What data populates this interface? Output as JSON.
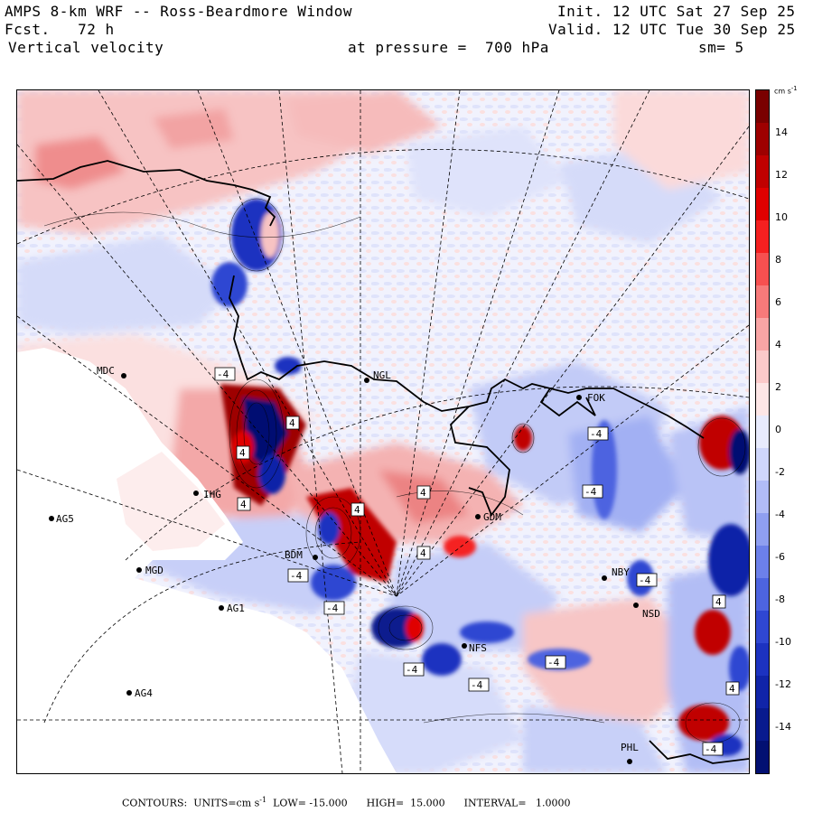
{
  "header": {
    "title": "AMPS 8-km WRF -- Ross-Beardmore Window",
    "forecast": "Fcst.   72 h",
    "field": "Vertical velocity",
    "init": "Init. 12 UTC Sat 27 Sep 25",
    "valid": "Valid. 12 UTC Tue 30 Sep 25",
    "pressure": "at pressure =  700 hPa",
    "smoothing": "sm= 5"
  },
  "colorbar": {
    "units": "cm s",
    "units_sup": "-1",
    "labels": [
      "14",
      "12",
      "10",
      "8",
      "6",
      "4",
      "2",
      "0",
      "-2",
      "-4",
      "-6",
      "-8",
      "-10",
      "-12",
      "-14"
    ],
    "colors": [
      "#7a0000",
      "#9e0000",
      "#c00000",
      "#e00000",
      "#f52020",
      "#f75050",
      "#f77a7a",
      "#f9a5a5",
      "#fbcaca",
      "#fde6e6",
      "#e8ebfd",
      "#cfd6fb",
      "#b1bcf7",
      "#8f9ff1",
      "#6c80ea",
      "#4d64e0",
      "#2f47d2",
      "#1c32c0",
      "#1024a8",
      "#081a8e",
      "#021072"
    ]
  },
  "stations": [
    {
      "name": "MDC",
      "side": "left"
    },
    {
      "name": "NGL",
      "side": "right"
    },
    {
      "name": "IHG",
      "side": "right"
    },
    {
      "name": "AG5",
      "side": "right"
    },
    {
      "name": "MGD",
      "side": "right"
    },
    {
      "name": "AG1",
      "side": "right"
    },
    {
      "name": "AG4",
      "side": "right"
    },
    {
      "name": "BDM",
      "side": "right"
    },
    {
      "name": "FOK",
      "side": "right"
    },
    {
      "name": "NBY",
      "side": "right"
    },
    {
      "name": "NSD",
      "side": "right"
    },
    {
      "name": "PHL",
      "side": "left"
    },
    {
      "name": "GDM",
      "side": "right"
    },
    {
      "name": "NFS",
      "side": "right"
    }
  ],
  "contour_labels": [
    "4",
    "4",
    "-4",
    "4",
    "4",
    "-4",
    "-4",
    "4",
    "-4",
    "-4",
    "-4",
    "-4",
    "-4",
    "-4",
    "4",
    "-4",
    "4",
    "4"
  ],
  "footer": {
    "contours_label": "CONTOURS:",
    "units_label": "UNITS=cm s",
    "units_sup": "-1",
    "low": "LOW= -15.000",
    "high": "HIGH=  15.000",
    "interval": "INTERVAL=   1.0000"
  }
}
